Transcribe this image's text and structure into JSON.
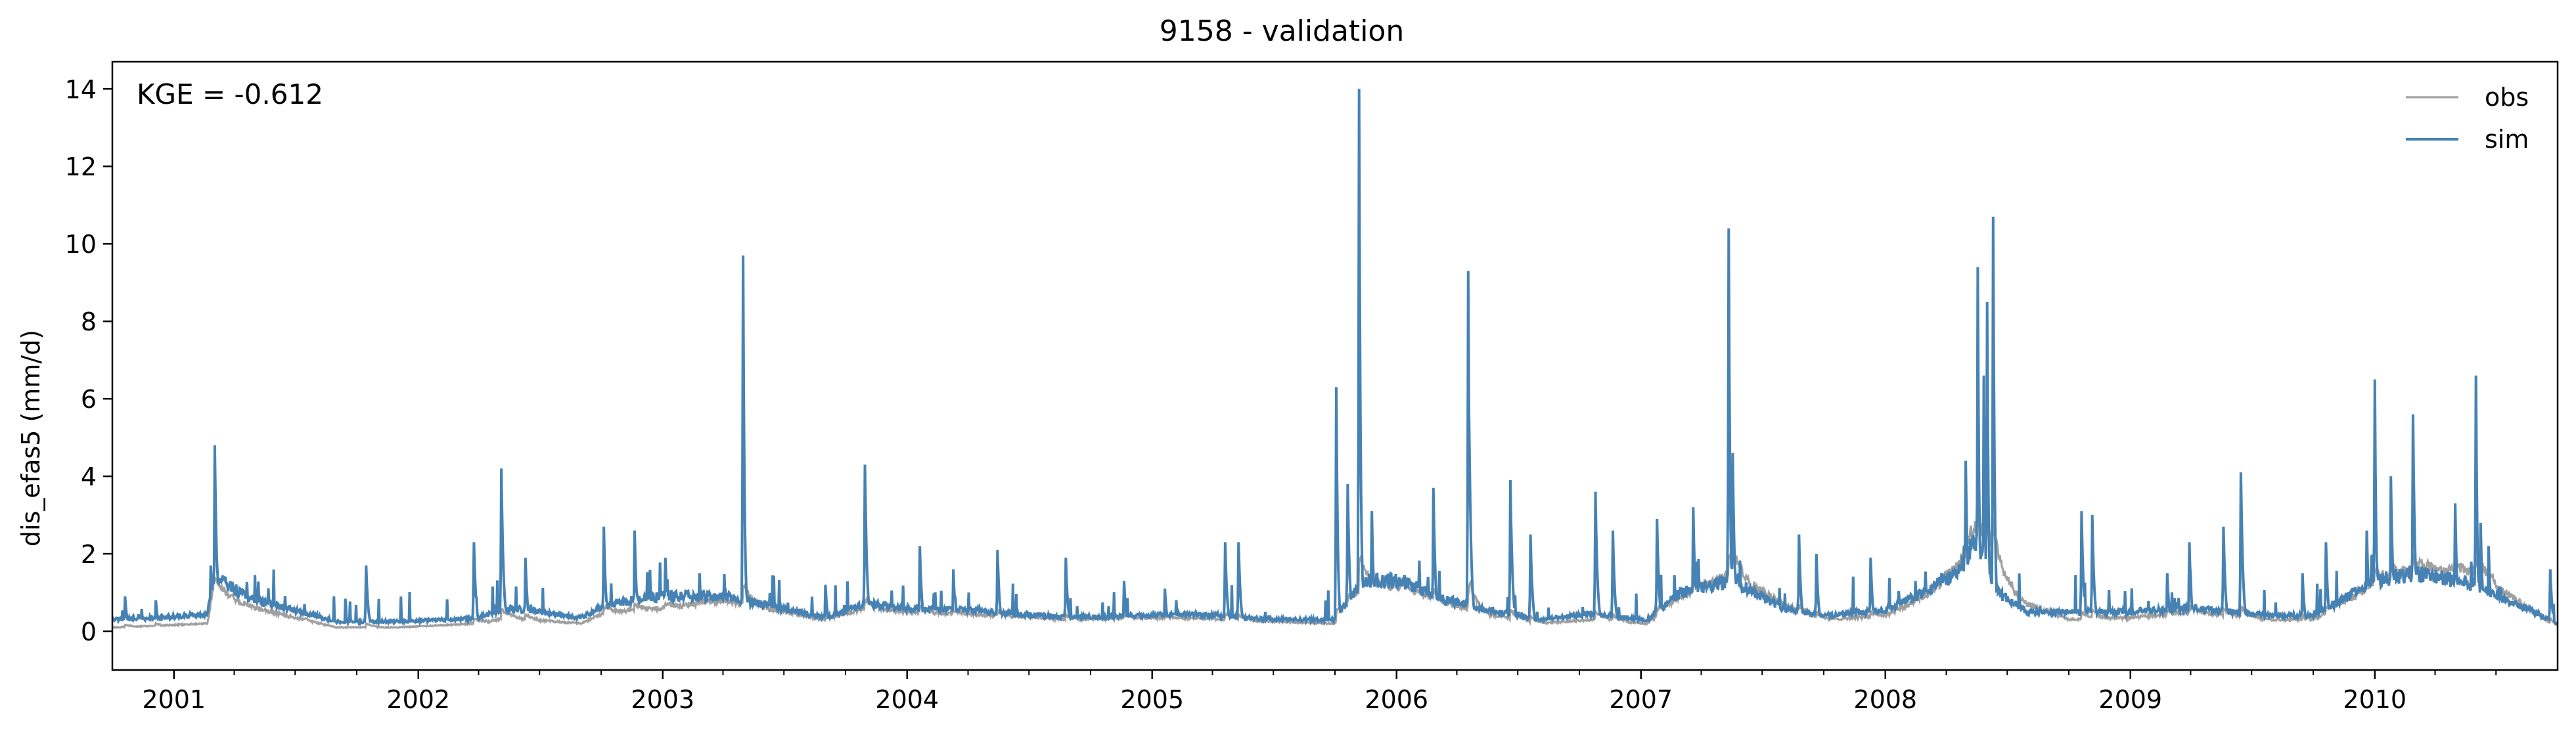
{
  "chart_data": {
    "type": "line",
    "title": "9158 - validation",
    "xlabel": "",
    "ylabel": "dis_efas5 (mm/d)",
    "annotation": "KGE = -0.612",
    "xlim": [
      "2000-10-01",
      "2010-10-01"
    ],
    "ylim": [
      -1.0,
      14.7
    ],
    "yticks": [
      0,
      2,
      4,
      6,
      8,
      10,
      12,
      14
    ],
    "ytick_labels": [
      "0",
      "2",
      "4",
      "6",
      "8",
      "10",
      "12",
      "14"
    ],
    "xticks": [
      "2001-01-01",
      "2002-01-01",
      "2003-01-01",
      "2004-01-01",
      "2005-01-01",
      "2006-01-01",
      "2007-01-01",
      "2008-01-01",
      "2009-01-01",
      "2010-01-01"
    ],
    "xtick_labels": [
      "2001",
      "2002",
      "2003",
      "2004",
      "2005",
      "2006",
      "2007",
      "2008",
      "2009",
      "2010"
    ],
    "grid": false,
    "legend": {
      "position": "top-right",
      "entries": [
        "obs",
        "sim"
      ]
    },
    "series": [
      {
        "name": "obs",
        "color": "#a0a0a0",
        "x": [
          "2000-10-01",
          "2000-12-15",
          "2001-02-20",
          "2001-03-01",
          "2001-05-01",
          "2001-09-01",
          "2001-12-01",
          "2002-04-01",
          "2002-05-15",
          "2002-09-01",
          "2002-10-10",
          "2003-01-01",
          "2003-04-01",
          "2003-05-01",
          "2003-09-01",
          "2003-11-01",
          "2004-01-01",
          "2004-04-01",
          "2004-09-01",
          "2004-12-01",
          "2005-03-01",
          "2005-07-01",
          "2005-10-01",
          "2005-10-20",
          "2005-11-10",
          "2006-01-10",
          "2006-03-01",
          "2006-05-01",
          "2006-08-01",
          "2006-10-20",
          "2007-01-10",
          "2007-03-01",
          "2007-05-20",
          "2007-08-01",
          "2007-10-01",
          "2008-01-01",
          "2008-03-01",
          "2008-04-15",
          "2008-05-15",
          "2008-06-15",
          "2008-08-01",
          "2008-10-01",
          "2009-01-01",
          "2009-04-01",
          "2009-08-01",
          "2009-10-01",
          "2010-01-01",
          "2010-03-01",
          "2010-06-01",
          "2010-08-01",
          "2010-10-01"
        ],
        "y": [
          0.1,
          0.15,
          0.2,
          1.1,
          0.6,
          0.1,
          0.1,
          0.2,
          0.35,
          0.2,
          0.5,
          0.6,
          0.8,
          0.7,
          0.3,
          0.6,
          0.5,
          0.45,
          0.3,
          0.35,
          0.35,
          0.25,
          0.2,
          0.6,
          1.1,
          1.2,
          0.8,
          0.5,
          0.2,
          0.3,
          0.2,
          0.9,
          1.5,
          0.7,
          0.3,
          0.4,
          0.9,
          1.6,
          2.6,
          1.5,
          0.7,
          0.3,
          0.35,
          0.5,
          0.3,
          0.3,
          1.2,
          1.6,
          1.5,
          0.8,
          0.1
        ]
      },
      {
        "name": "sim",
        "color": "#4682b4",
        "base_x": [
          "2000-10-01",
          "2000-12-15",
          "2001-02-20",
          "2001-03-01",
          "2001-05-01",
          "2001-09-01",
          "2001-12-01",
          "2002-04-01",
          "2002-05-15",
          "2002-09-01",
          "2002-10-10",
          "2003-01-01",
          "2003-04-01",
          "2003-05-01",
          "2003-09-01",
          "2003-11-01",
          "2004-01-01",
          "2004-04-01",
          "2004-09-01",
          "2004-12-01",
          "2005-03-01",
          "2005-07-01",
          "2005-10-01",
          "2005-10-20",
          "2005-11-10",
          "2006-01-10",
          "2006-03-01",
          "2006-05-01",
          "2006-08-01",
          "2006-10-20",
          "2007-01-10",
          "2007-03-01",
          "2007-05-20",
          "2007-08-01",
          "2007-10-01",
          "2008-01-01",
          "2008-03-01",
          "2008-04-15",
          "2008-05-15",
          "2008-06-15",
          "2008-08-01",
          "2008-10-01",
          "2009-01-01",
          "2009-04-01",
          "2009-08-01",
          "2009-10-01",
          "2010-01-01",
          "2010-03-01",
          "2010-06-01",
          "2010-08-01",
          "2010-10-01"
        ],
        "base_y": [
          0.3,
          0.35,
          0.45,
          1.4,
          0.8,
          0.25,
          0.25,
          0.35,
          0.6,
          0.35,
          0.7,
          0.9,
          0.9,
          0.8,
          0.35,
          0.7,
          0.6,
          0.55,
          0.35,
          0.4,
          0.45,
          0.3,
          0.3,
          0.8,
          1.3,
          1.3,
          0.9,
          0.6,
          0.3,
          0.45,
          0.3,
          1.0,
          1.3,
          0.6,
          0.4,
          0.55,
          1.0,
          1.5,
          2.3,
          1.0,
          0.5,
          0.5,
          0.5,
          0.6,
          0.4,
          0.4,
          1.3,
          1.5,
          1.2,
          0.7,
          0.2
        ],
        "peak_dates": [
          "2000-10-20",
          "2000-12-05",
          "2001-02-25",
          "2001-03-03",
          "2001-07-15",
          "2001-10-15",
          "2002-03-25",
          "2002-05-05",
          "2002-06-10",
          "2002-10-05",
          "2002-11-20",
          "2003-01-05",
          "2003-02-25",
          "2003-05-01",
          "2003-09-01",
          "2003-10-30",
          "2004-01-20",
          "2004-03-10",
          "2004-05-15",
          "2004-08-25",
          "2004-11-20",
          "2005-01-20",
          "2005-04-20",
          "2005-05-10",
          "2005-10-03",
          "2005-10-20",
          "2005-11-06",
          "2005-11-25",
          "2006-02-25",
          "2006-04-18",
          "2006-04-20",
          "2006-06-20",
          "2006-07-20",
          "2006-10-25",
          "2006-11-20",
          "2007-01-25",
          "2007-03-20",
          "2007-05-12",
          "2007-05-18",
          "2007-08-25",
          "2007-09-20",
          "2007-12-10",
          "2008-02-15",
          "2008-03-25",
          "2008-04-30",
          "2008-05-18",
          "2008-05-27",
          "2008-06-01",
          "2008-06-10",
          "2008-10-20",
          "2008-11-05",
          "2009-02-25",
          "2009-03-30",
          "2009-05-20",
          "2009-06-15",
          "2009-09-15",
          "2009-10-20",
          "2009-12-20",
          "2010-01-01",
          "2010-01-25",
          "2010-02-27",
          "2010-03-20",
          "2010-05-01",
          "2010-05-25",
          "2010-06-01",
          "2010-06-08",
          "2010-06-20",
          "2010-09-20"
        ],
        "peak_values": [
          0.9,
          0.8,
          1.7,
          4.8,
          0.7,
          1.7,
          2.3,
          4.2,
          1.9,
          2.7,
          2.6,
          1.9,
          1.5,
          9.7,
          1.2,
          4.3,
          2.2,
          1.6,
          2.1,
          1.9,
          1.3,
          1.1,
          2.3,
          2.3,
          6.3,
          3.8,
          14.0,
          3.1,
          3.7,
          9.3,
          4.5,
          3.9,
          2.5,
          3.6,
          2.6,
          2.9,
          3.2,
          10.4,
          4.6,
          2.5,
          2.0,
          1.9,
          1.3,
          1.5,
          4.4,
          9.4,
          6.6,
          8.5,
          10.7,
          3.1,
          3.0,
          1.5,
          2.3,
          2.7,
          4.1,
          1.5,
          2.3,
          2.6,
          6.5,
          4.0,
          5.6,
          1.6,
          3.3,
          1.8,
          6.6,
          2.8,
          2.2,
          1.6
        ]
      }
    ]
  }
}
